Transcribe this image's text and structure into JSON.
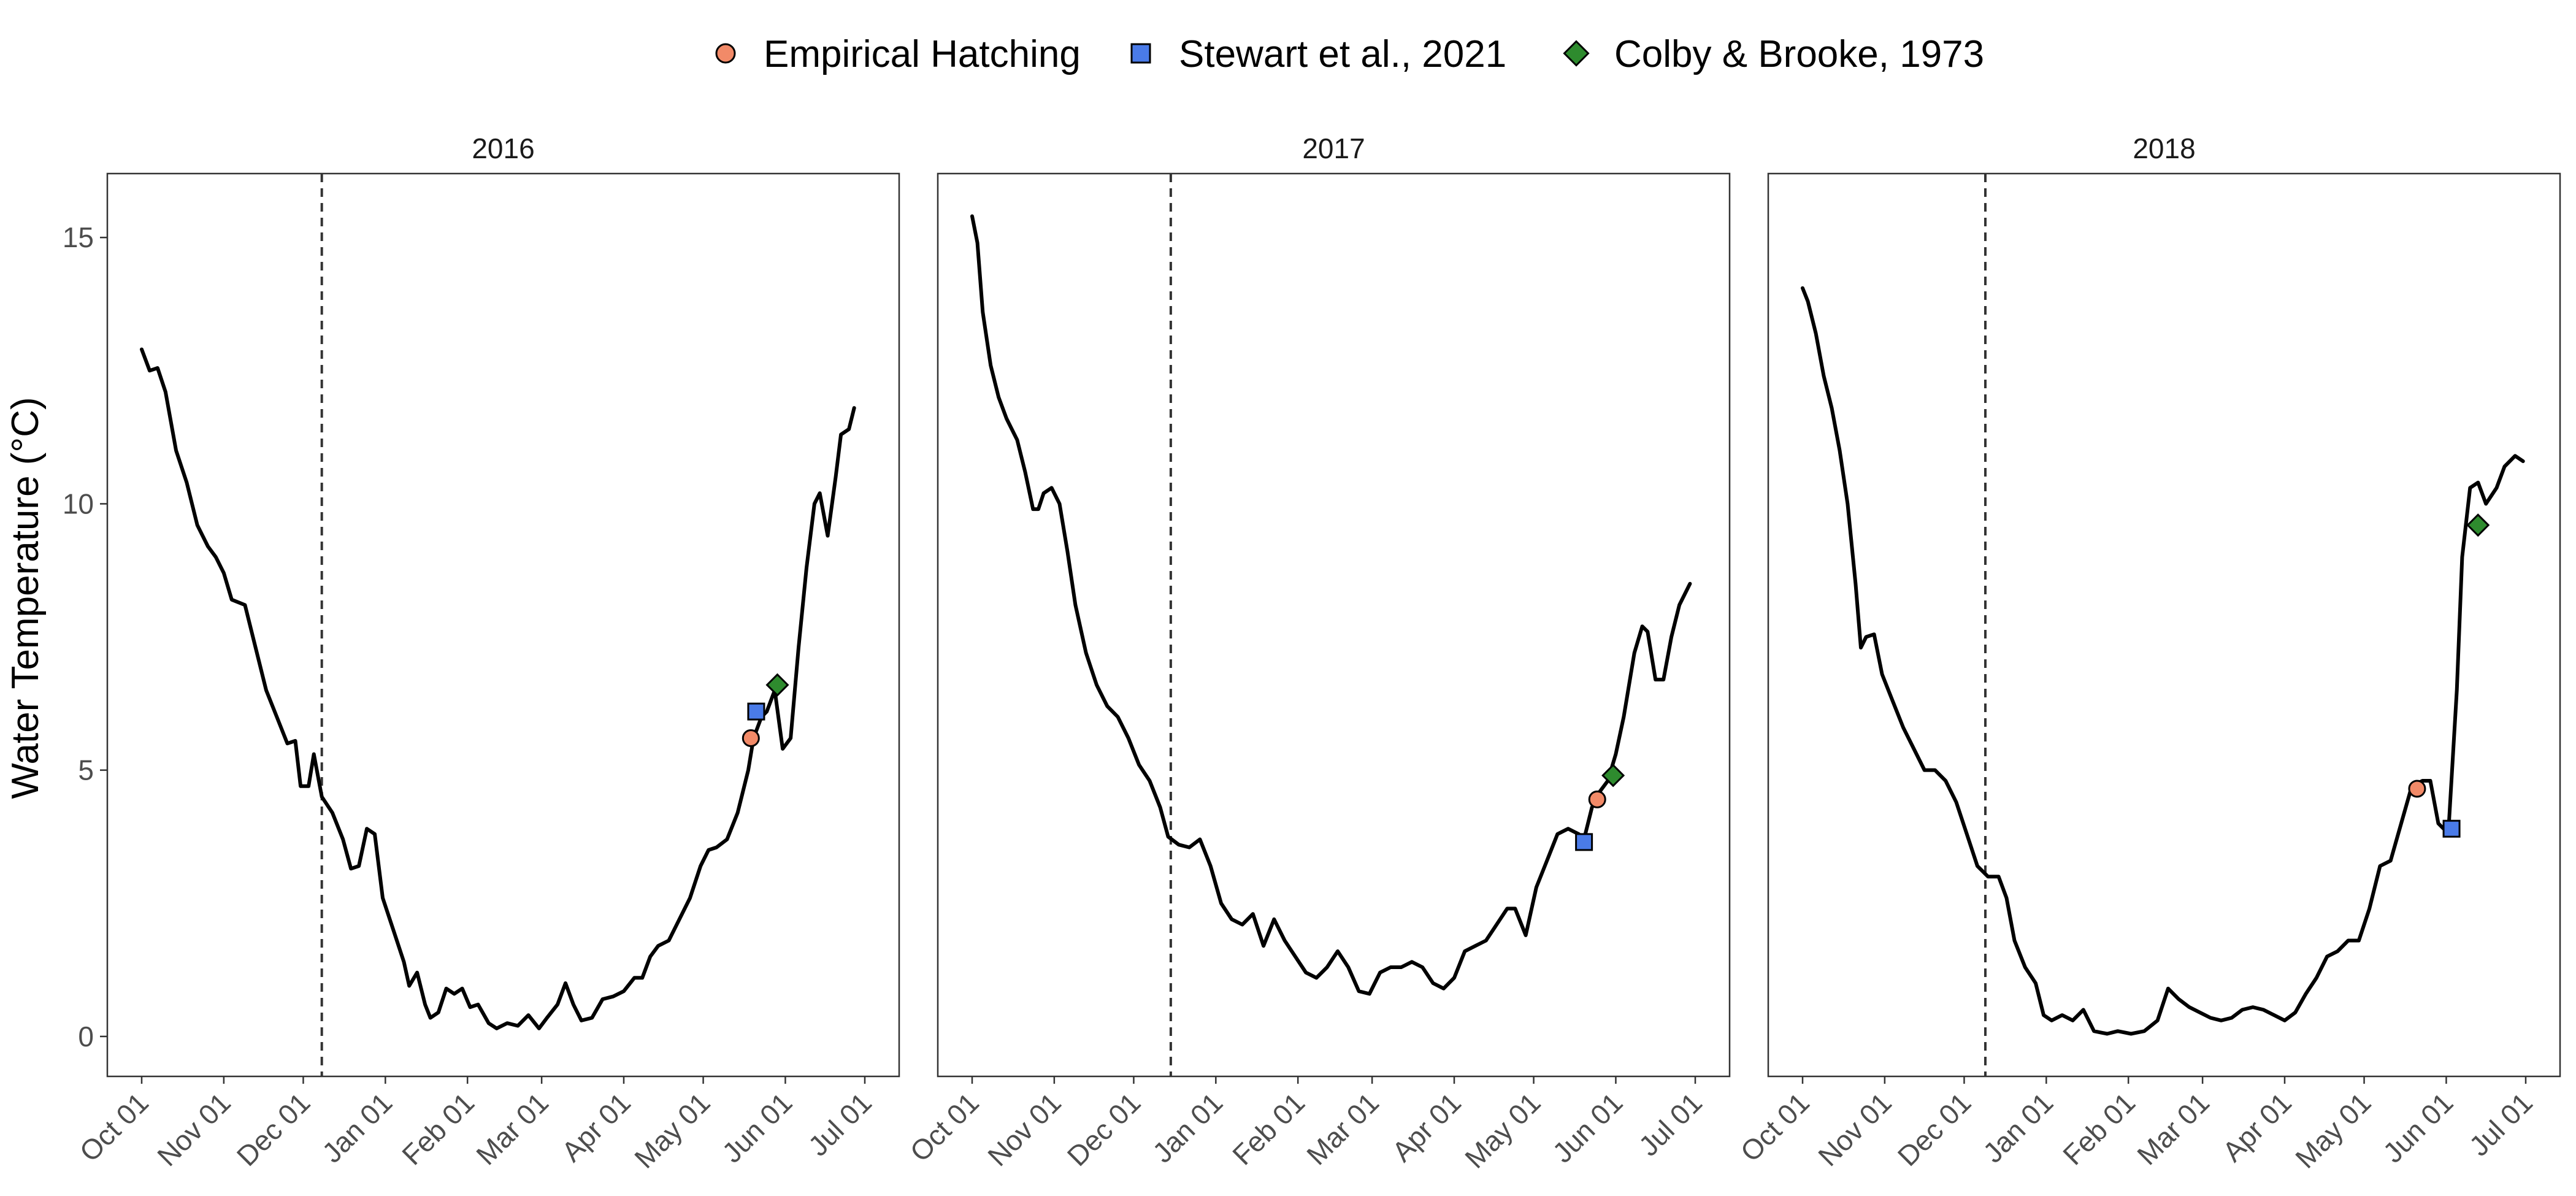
{
  "chart_data": {
    "type": "line",
    "ylabel": "Water Temperature (°C)",
    "xlabel": "",
    "ylim": [
      -0.75,
      16.2
    ],
    "y_ticks": [
      0,
      5,
      10,
      15
    ],
    "x_tick_labels": [
      "Oct 01",
      "Nov 01",
      "Dec 01",
      "Jan 01",
      "Feb 01",
      "Mar 01",
      "Apr 01",
      "May 01",
      "Jun 01",
      "Jul 01"
    ],
    "grid": false,
    "legend_position": "top",
    "legend": [
      {
        "label": "Empirical Hatching",
        "shape": "circle",
        "color": "#F28A68"
      },
      {
        "label": "Stewart et al., 2021",
        "shape": "square",
        "color": "#4A7BE8"
      },
      {
        "label": "Colby & Brooke, 1973",
        "shape": "diamond",
        "color": "#2E8B2E"
      }
    ],
    "line_color": "#000000",
    "vline_style": "dashed",
    "panels": [
      {
        "title": "2016",
        "vline_date": "Dec 08",
        "series": [
          [
            "10-01",
            12.9
          ],
          [
            "10-04",
            12.5
          ],
          [
            "10-07",
            12.55
          ],
          [
            "10-10",
            12.1
          ],
          [
            "10-14",
            11.0
          ],
          [
            "10-18",
            10.4
          ],
          [
            "10-22",
            9.6
          ],
          [
            "10-26",
            9.2
          ],
          [
            "10-29",
            9.0
          ],
          [
            "11-01",
            8.7
          ],
          [
            "11-04",
            8.2
          ],
          [
            "11-09",
            8.1
          ],
          [
            "11-13",
            7.3
          ],
          [
            "11-17",
            6.5
          ],
          [
            "11-21",
            6.0
          ],
          [
            "11-25",
            5.5
          ],
          [
            "11-28",
            5.55
          ],
          [
            "11-30",
            4.7
          ],
          [
            "12-03",
            4.7
          ],
          [
            "12-05",
            5.3
          ],
          [
            "12-08",
            4.5
          ],
          [
            "12-12",
            4.2
          ],
          [
            "12-16",
            3.7
          ],
          [
            "12-19",
            3.15
          ],
          [
            "12-22",
            3.2
          ],
          [
            "12-25",
            3.9
          ],
          [
            "12-28",
            3.8
          ],
          [
            "12-31",
            2.6
          ],
          [
            "01-04",
            2.0
          ],
          [
            "01-08",
            1.4
          ],
          [
            "01-10",
            0.95
          ],
          [
            "01-13",
            1.2
          ],
          [
            "01-16",
            0.6
          ],
          [
            "01-18",
            0.35
          ],
          [
            "01-21",
            0.45
          ],
          [
            "01-24",
            0.9
          ],
          [
            "01-27",
            0.8
          ],
          [
            "01-30",
            0.9
          ],
          [
            "02-02",
            0.55
          ],
          [
            "02-05",
            0.6
          ],
          [
            "02-09",
            0.25
          ],
          [
            "02-12",
            0.15
          ],
          [
            "02-16",
            0.25
          ],
          [
            "02-20",
            0.2
          ],
          [
            "02-24",
            0.4
          ],
          [
            "02-28",
            0.15
          ],
          [
            "03-03",
            0.35
          ],
          [
            "03-07",
            0.6
          ],
          [
            "03-10",
            1.0
          ],
          [
            "03-13",
            0.6
          ],
          [
            "03-16",
            0.3
          ],
          [
            "03-20",
            0.35
          ],
          [
            "03-24",
            0.7
          ],
          [
            "03-28",
            0.75
          ],
          [
            "04-01",
            0.85
          ],
          [
            "04-05",
            1.1
          ],
          [
            "04-08",
            1.1
          ],
          [
            "04-11",
            1.5
          ],
          [
            "04-14",
            1.7
          ],
          [
            "04-18",
            1.8
          ],
          [
            "04-22",
            2.2
          ],
          [
            "04-26",
            2.6
          ],
          [
            "04-30",
            3.2
          ],
          [
            "05-03",
            3.5
          ],
          [
            "05-06",
            3.55
          ],
          [
            "05-10",
            3.7
          ],
          [
            "05-14",
            4.2
          ],
          [
            "05-18",
            5.0
          ],
          [
            "05-20",
            5.6
          ],
          [
            "05-23",
            6.0
          ],
          [
            "05-25",
            6.1
          ],
          [
            "05-28",
            6.5
          ],
          [
            "05-31",
            5.4
          ],
          [
            "06-03",
            5.6
          ],
          [
            "06-06",
            7.3
          ],
          [
            "06-09",
            8.8
          ],
          [
            "06-12",
            10.0
          ],
          [
            "06-14",
            10.2
          ],
          [
            "06-17",
            9.4
          ],
          [
            "06-20",
            10.5
          ],
          [
            "06-22",
            11.3
          ],
          [
            "06-25",
            11.4
          ],
          [
            "06-27",
            11.8
          ]
        ],
        "markers": [
          {
            "type": "Empirical Hatching",
            "date": "05-19",
            "value": 5.6
          },
          {
            "type": "Stewart et al., 2021",
            "date": "05-21",
            "value": 6.1
          },
          {
            "type": "Colby & Brooke, 1973",
            "date": "05-29",
            "value": 6.6
          }
        ]
      },
      {
        "title": "2017",
        "vline_date": "Dec 15",
        "series": [
          [
            "10-01",
            15.4
          ],
          [
            "10-03",
            14.9
          ],
          [
            "10-05",
            13.6
          ],
          [
            "10-08",
            12.6
          ],
          [
            "10-11",
            12.0
          ],
          [
            "10-14",
            11.6
          ],
          [
            "10-18",
            11.2
          ],
          [
            "10-21",
            10.6
          ],
          [
            "10-24",
            9.9
          ],
          [
            "10-26",
            9.9
          ],
          [
            "10-28",
            10.2
          ],
          [
            "10-31",
            10.3
          ],
          [
            "11-03",
            10.0
          ],
          [
            "11-06",
            9.1
          ],
          [
            "11-09",
            8.1
          ],
          [
            "11-13",
            7.2
          ],
          [
            "11-17",
            6.6
          ],
          [
            "11-21",
            6.2
          ],
          [
            "11-25",
            6.0
          ],
          [
            "11-29",
            5.6
          ],
          [
            "12-03",
            5.1
          ],
          [
            "12-07",
            4.8
          ],
          [
            "12-11",
            4.3
          ],
          [
            "12-14",
            3.75
          ],
          [
            "12-18",
            3.6
          ],
          [
            "12-22",
            3.55
          ],
          [
            "12-26",
            3.7
          ],
          [
            "12-30",
            3.2
          ],
          [
            "01-03",
            2.5
          ],
          [
            "01-07",
            2.2
          ],
          [
            "01-11",
            2.1
          ],
          [
            "01-15",
            2.3
          ],
          [
            "01-19",
            1.7
          ],
          [
            "01-23",
            2.2
          ],
          [
            "01-27",
            1.8
          ],
          [
            "01-31",
            1.5
          ],
          [
            "02-04",
            1.2
          ],
          [
            "02-08",
            1.1
          ],
          [
            "02-12",
            1.3
          ],
          [
            "02-16",
            1.6
          ],
          [
            "02-20",
            1.3
          ],
          [
            "02-24",
            0.85
          ],
          [
            "02-28",
            0.8
          ],
          [
            "03-04",
            1.2
          ],
          [
            "03-08",
            1.3
          ],
          [
            "03-12",
            1.3
          ],
          [
            "03-16",
            1.4
          ],
          [
            "03-20",
            1.3
          ],
          [
            "03-24",
            1.0
          ],
          [
            "03-28",
            0.9
          ],
          [
            "04-01",
            1.1
          ],
          [
            "04-05",
            1.6
          ],
          [
            "04-09",
            1.7
          ],
          [
            "04-13",
            1.8
          ],
          [
            "04-17",
            2.1
          ],
          [
            "04-21",
            2.4
          ],
          [
            "04-24",
            2.4
          ],
          [
            "04-28",
            1.9
          ],
          [
            "05-02",
            2.8
          ],
          [
            "05-06",
            3.3
          ],
          [
            "05-10",
            3.8
          ],
          [
            "05-14",
            3.9
          ],
          [
            "05-18",
            3.8
          ],
          [
            "05-20",
            3.7
          ],
          [
            "05-23",
            4.3
          ],
          [
            "05-26",
            4.6
          ],
          [
            "05-29",
            4.8
          ],
          [
            "06-01",
            5.3
          ],
          [
            "06-04",
            6.0
          ],
          [
            "06-08",
            7.2
          ],
          [
            "06-11",
            7.7
          ],
          [
            "06-13",
            7.6
          ],
          [
            "06-16",
            6.7
          ],
          [
            "06-19",
            6.7
          ],
          [
            "06-22",
            7.5
          ],
          [
            "06-25",
            8.1
          ],
          [
            "06-29",
            8.5
          ]
        ],
        "markers": [
          {
            "type": "Stewart et al., 2021",
            "date": "05-20",
            "value": 3.65
          },
          {
            "type": "Empirical Hatching",
            "date": "05-25",
            "value": 4.45
          },
          {
            "type": "Colby & Brooke, 1973",
            "date": "05-31",
            "value": 4.9
          }
        ]
      },
      {
        "title": "2018",
        "vline_date": "Dec 09",
        "series": [
          [
            "10-01",
            14.05
          ],
          [
            "10-03",
            13.8
          ],
          [
            "10-06",
            13.2
          ],
          [
            "10-09",
            12.4
          ],
          [
            "10-12",
            11.8
          ],
          [
            "10-15",
            11.0
          ],
          [
            "10-18",
            10.0
          ],
          [
            "10-21",
            8.5
          ],
          [
            "10-23",
            7.3
          ],
          [
            "10-25",
            7.5
          ],
          [
            "10-28",
            7.55
          ],
          [
            "10-31",
            6.8
          ],
          [
            "11-04",
            6.3
          ],
          [
            "11-08",
            5.8
          ],
          [
            "11-12",
            5.4
          ],
          [
            "11-16",
            5.0
          ],
          [
            "11-20",
            5.0
          ],
          [
            "11-24",
            4.8
          ],
          [
            "11-28",
            4.4
          ],
          [
            "12-02",
            3.8
          ],
          [
            "12-06",
            3.2
          ],
          [
            "12-10",
            3.0
          ],
          [
            "12-14",
            3.0
          ],
          [
            "12-17",
            2.6
          ],
          [
            "12-20",
            1.8
          ],
          [
            "12-24",
            1.3
          ],
          [
            "12-28",
            1.0
          ],
          [
            "12-31",
            0.4
          ],
          [
            "01-03",
            0.3
          ],
          [
            "01-07",
            0.4
          ],
          [
            "01-11",
            0.3
          ],
          [
            "01-15",
            0.5
          ],
          [
            "01-19",
            0.1
          ],
          [
            "01-24",
            0.05
          ],
          [
            "01-28",
            0.1
          ],
          [
            "02-02",
            0.05
          ],
          [
            "02-07",
            0.1
          ],
          [
            "02-12",
            0.3
          ],
          [
            "02-16",
            0.9
          ],
          [
            "02-20",
            0.7
          ],
          [
            "02-24",
            0.55
          ],
          [
            "02-28",
            0.45
          ],
          [
            "03-04",
            0.35
          ],
          [
            "03-08",
            0.3
          ],
          [
            "03-12",
            0.35
          ],
          [
            "03-16",
            0.5
          ],
          [
            "03-20",
            0.55
          ],
          [
            "03-24",
            0.5
          ],
          [
            "03-28",
            0.4
          ],
          [
            "04-01",
            0.3
          ],
          [
            "04-05",
            0.45
          ],
          [
            "04-09",
            0.8
          ],
          [
            "04-13",
            1.1
          ],
          [
            "04-17",
            1.5
          ],
          [
            "04-21",
            1.6
          ],
          [
            "04-25",
            1.8
          ],
          [
            "04-29",
            1.8
          ],
          [
            "05-03",
            2.4
          ],
          [
            "05-07",
            3.2
          ],
          [
            "05-11",
            3.3
          ],
          [
            "05-15",
            4.0
          ],
          [
            "05-19",
            4.7
          ],
          [
            "05-23",
            4.8
          ],
          [
            "05-26",
            4.8
          ],
          [
            "05-29",
            4.0
          ],
          [
            "05-31",
            3.9
          ],
          [
            "06-02",
            4.0
          ],
          [
            "06-05",
            6.5
          ],
          [
            "06-07",
            9.0
          ],
          [
            "06-10",
            10.3
          ],
          [
            "06-13",
            10.4
          ],
          [
            "06-16",
            10.0
          ],
          [
            "06-20",
            10.3
          ],
          [
            "06-23",
            10.7
          ],
          [
            "06-27",
            10.9
          ],
          [
            "06-30",
            10.8
          ]
        ],
        "markers": [
          {
            "type": "Empirical Hatching",
            "date": "05-21",
            "value": 4.65
          },
          {
            "type": "Stewart et al., 2021",
            "date": "06-03",
            "value": 3.9
          },
          {
            "type": "Colby & Brooke, 1973",
            "date": "06-13",
            "value": 9.6
          }
        ]
      }
    ]
  }
}
